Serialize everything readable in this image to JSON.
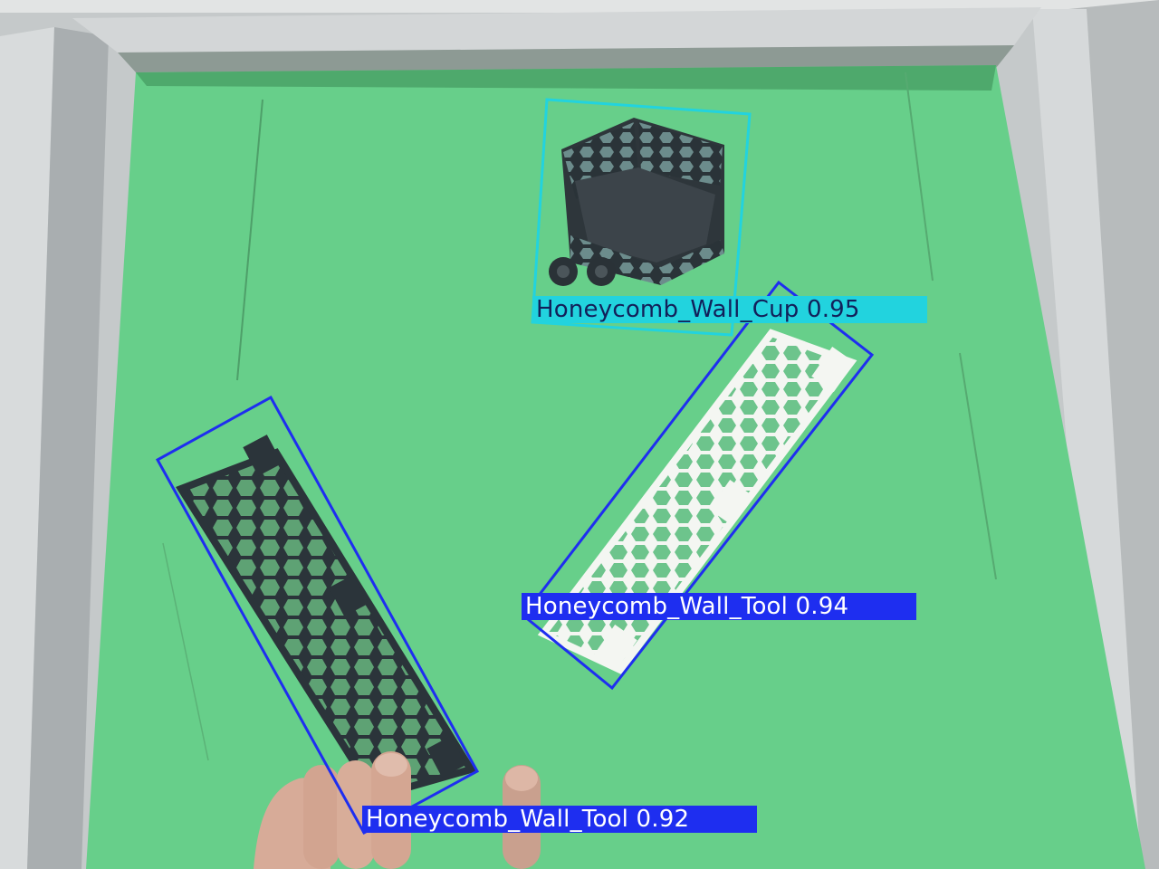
{
  "detections": [
    {
      "label": "Honeycomb_Wall_Cup 0.95",
      "color": "#22d3de"
    },
    {
      "label": "Honeycomb_Wall_Tool 0.94",
      "color": "#1e2ef0"
    },
    {
      "label": "Honeycomb_Wall_Tool 0.92",
      "color": "#1e2ef0"
    }
  ],
  "colors": {
    "tray": "#67cf8a",
    "frame": "#c8cccd",
    "dark_part": "#2f3a40",
    "light_part": "#f1f3ef",
    "skin": "#d5a796"
  }
}
